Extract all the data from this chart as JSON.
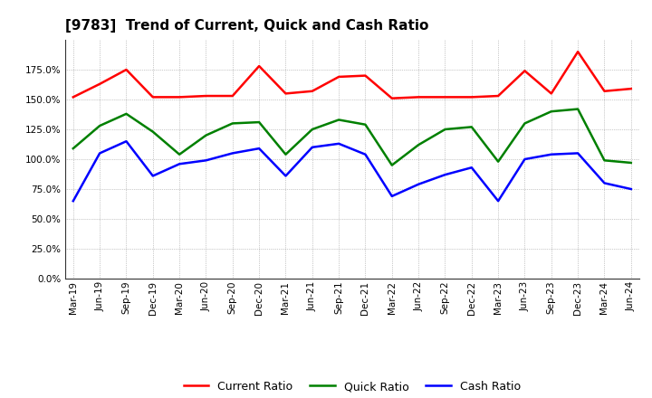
{
  "title": "[9783]  Trend of Current, Quick and Cash Ratio",
  "x_labels": [
    "Mar-19",
    "Jun-19",
    "Sep-19",
    "Dec-19",
    "Mar-20",
    "Jun-20",
    "Sep-20",
    "Dec-20",
    "Mar-21",
    "Jun-21",
    "Sep-21",
    "Dec-21",
    "Mar-22",
    "Jun-22",
    "Sep-22",
    "Dec-22",
    "Mar-23",
    "Jun-23",
    "Sep-23",
    "Dec-23",
    "Mar-24",
    "Jun-24"
  ],
  "current_ratio": [
    152,
    163,
    175,
    152,
    152,
    153,
    153,
    178,
    155,
    157,
    169,
    170,
    151,
    152,
    152,
    152,
    153,
    174,
    155,
    190,
    157,
    159
  ],
  "quick_ratio": [
    109,
    128,
    138,
    123,
    104,
    120,
    130,
    131,
    104,
    125,
    133,
    129,
    95,
    112,
    125,
    127,
    98,
    130,
    140,
    142,
    99,
    97
  ],
  "cash_ratio": [
    65,
    105,
    115,
    86,
    96,
    99,
    105,
    109,
    86,
    110,
    113,
    104,
    69,
    79,
    87,
    93,
    65,
    100,
    104,
    105,
    80,
    75
  ],
  "ylim": [
    0,
    200
  ],
  "yticks": [
    0,
    25,
    50,
    75,
    100,
    125,
    150,
    175
  ],
  "current_color": "#FF0000",
  "quick_color": "#008000",
  "cash_color": "#0000FF",
  "bg_color": "#FFFFFF",
  "plot_bg_color": "#FFFFFF",
  "grid_color": "#999999",
  "title_fontsize": 11,
  "legend_fontsize": 9,
  "tick_fontsize": 7.5,
  "line_width": 1.8
}
